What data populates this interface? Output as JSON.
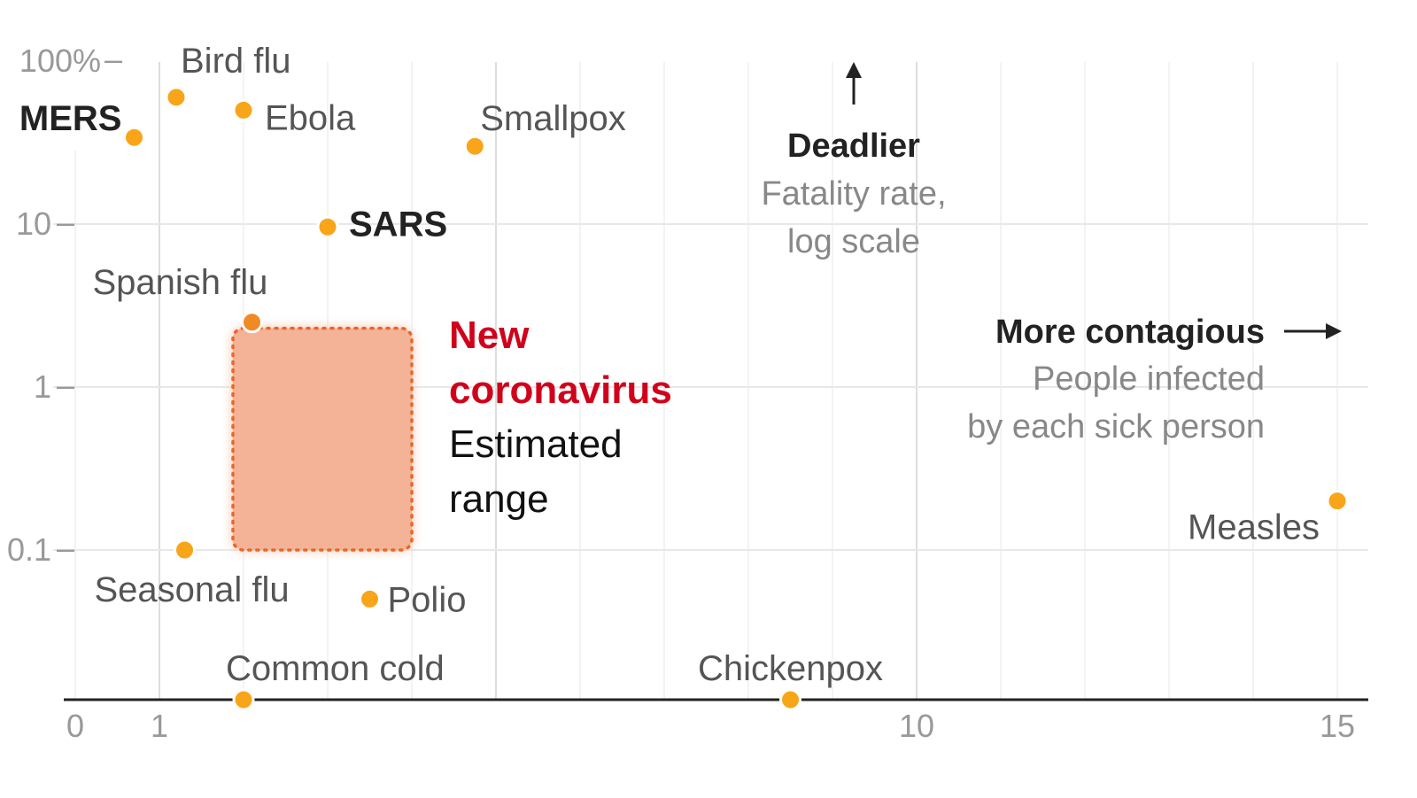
{
  "chart_data": {
    "type": "scatter",
    "x_axis": {
      "min": 0,
      "max": 15,
      "ticks": [
        {
          "value": 0,
          "label": "0"
        },
        {
          "value": 1,
          "label": "1"
        },
        {
          "value": 10,
          "label": "10"
        },
        {
          "value": 15,
          "label": "15"
        }
      ]
    },
    "y_axis": {
      "scale": "log",
      "min": 0.005,
      "max": 100,
      "ticks": [
        {
          "value": 100,
          "label": "100%"
        },
        {
          "value": 10,
          "label": "10"
        },
        {
          "value": 1,
          "label": "1"
        },
        {
          "value": 0.1,
          "label": "0.1"
        }
      ]
    },
    "points": [
      {
        "name": "Bird flu",
        "x": 1.2,
        "y": 60,
        "bold": false
      },
      {
        "name": "Ebola",
        "x": 2.0,
        "y": 50,
        "bold": false
      },
      {
        "name": "MERS",
        "x": 0.7,
        "y": 34,
        "bold": true
      },
      {
        "name": "Smallpox",
        "x": 4.75,
        "y": 30,
        "bold": false
      },
      {
        "name": "SARS",
        "x": 3.0,
        "y": 9.6,
        "bold": true
      },
      {
        "name": "Spanish flu",
        "x": 2.1,
        "y": 2.5,
        "bold": false
      },
      {
        "name": "Seasonal flu",
        "x": 1.3,
        "y": 0.1,
        "bold": false
      },
      {
        "name": "Polio",
        "x": 3.5,
        "y": 0.05,
        "bold": false
      },
      {
        "name": "Common cold",
        "x": 2.0,
        "y": 0.005,
        "bold": false
      },
      {
        "name": "Chickenpox",
        "x": 8.5,
        "y": 0.005,
        "bold": false
      },
      {
        "name": "Measles",
        "x": 15.0,
        "y": 0.2,
        "bold": false
      }
    ],
    "range": {
      "title": "New coronavirus",
      "subtitle": "Estimated range",
      "x_range": [
        2,
        4
      ],
      "y_range": [
        0.1,
        2.6
      ]
    },
    "annotations": {
      "deadlier": {
        "title": "Deadlier",
        "subtitle": [
          "Fatality rate,",
          "log scale"
        ]
      },
      "contagious": {
        "title": "More contagious",
        "subtitle": [
          "People infected",
          "by each sick person"
        ]
      }
    },
    "colors": {
      "point": "#f9a51a",
      "range_fill": "#f4b396",
      "range_border": "#e8672a",
      "coronavirus": "#d0021b",
      "grid": "#e8e8e8"
    }
  }
}
